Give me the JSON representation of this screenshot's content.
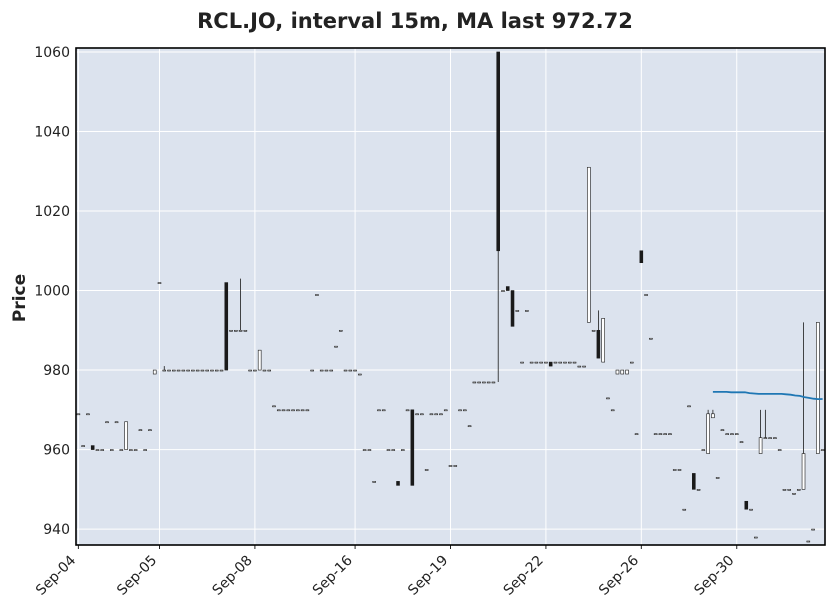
{
  "chart_data": {
    "type": "candlestick",
    "title": "RCL.JO, interval 15m, MA last 972.72",
    "ylabel": "Price",
    "xlabel": "",
    "ylim": [
      936,
      1061
    ],
    "yticks": [
      940,
      960,
      980,
      1000,
      1020,
      1040,
      1060
    ],
    "xticks": [
      "Sep-04",
      "Sep-05",
      "Sep-08",
      "Sep-16",
      "Sep-19",
      "Sep-22",
      "Sep-26",
      "Sep-30"
    ],
    "grid": true,
    "background": "#dce3ee",
    "up_color": "#ffffff",
    "down_color": "#1a1a1a",
    "ma_color": "#1f77b4",
    "candles": [
      [
        969,
        969,
        969,
        969
      ],
      [
        961,
        961,
        961,
        961
      ],
      [
        969,
        969,
        969,
        969
      ],
      [
        961,
        961,
        960,
        960
      ],
      [
        960,
        960,
        960,
        960
      ],
      [
        960,
        960,
        960,
        960
      ],
      [
        967,
        967,
        967,
        967
      ],
      [
        960,
        960,
        960,
        960
      ],
      [
        967,
        967,
        967,
        967
      ],
      [
        960,
        960,
        960,
        960
      ],
      [
        960,
        967,
        960,
        967
      ],
      [
        960,
        960,
        960,
        960
      ],
      [
        960,
        960,
        960,
        960
      ],
      [
        965,
        965,
        965,
        965
      ],
      [
        960,
        960,
        960,
        960
      ],
      [
        965,
        965,
        965,
        965
      ],
      [
        979,
        980,
        979,
        980
      ],
      [
        1002,
        1002,
        1002,
        1002
      ],
      [
        980,
        981,
        980,
        980
      ],
      [
        980,
        980,
        980,
        980
      ],
      [
        980,
        980,
        980,
        980
      ],
      [
        980,
        980,
        980,
        980
      ],
      [
        980,
        980,
        980,
        980
      ],
      [
        980,
        980,
        980,
        980
      ],
      [
        980,
        980,
        980,
        980
      ],
      [
        980,
        980,
        980,
        980
      ],
      [
        980,
        980,
        980,
        980
      ],
      [
        980,
        980,
        980,
        980
      ],
      [
        980,
        980,
        980,
        980
      ],
      [
        980,
        980,
        980,
        980
      ],
      [
        980,
        980,
        980,
        980
      ],
      [
        1002,
        1002,
        980,
        980
      ],
      [
        990,
        990,
        990,
        990
      ],
      [
        990,
        990,
        990,
        990
      ],
      [
        990,
        1003,
        990,
        990
      ],
      [
        990,
        990,
        990,
        990
      ],
      [
        980,
        980,
        980,
        980
      ],
      [
        980,
        980,
        980,
        980
      ],
      [
        980,
        985,
        980,
        985
      ],
      [
        980,
        980,
        980,
        980
      ],
      [
        980,
        980,
        980,
        980
      ],
      [
        971,
        971,
        971,
        971
      ],
      [
        970,
        970,
        970,
        970
      ],
      [
        970,
        970,
        970,
        970
      ],
      [
        970,
        970,
        970,
        970
      ],
      [
        970,
        970,
        970,
        970
      ],
      [
        970,
        970,
        970,
        970
      ],
      [
        970,
        970,
        970,
        970
      ],
      [
        970,
        970,
        970,
        970
      ],
      [
        980,
        980,
        980,
        980
      ],
      [
        999,
        999,
        999,
        999
      ],
      [
        980,
        980,
        980,
        980
      ],
      [
        980,
        980,
        980,
        980
      ],
      [
        980,
        980,
        980,
        980
      ],
      [
        986,
        986,
        986,
        986
      ],
      [
        990,
        990,
        990,
        990
      ],
      [
        980,
        980,
        980,
        980
      ],
      [
        980,
        980,
        980,
        980
      ],
      [
        980,
        980,
        980,
        980
      ],
      [
        979,
        979,
        979,
        979
      ],
      [
        960,
        960,
        960,
        960
      ],
      [
        960,
        960,
        960,
        960
      ],
      [
        952,
        952,
        952,
        952
      ],
      [
        970,
        970,
        970,
        970
      ],
      [
        970,
        970,
        970,
        970
      ],
      [
        960,
        960,
        960,
        960
      ],
      [
        960,
        960,
        960,
        960
      ],
      [
        952,
        952,
        951,
        951
      ],
      [
        960,
        960,
        960,
        960
      ],
      [
        970,
        970,
        970,
        970
      ],
      [
        970,
        970,
        951,
        951
      ],
      [
        969,
        969,
        969,
        969
      ],
      [
        969,
        969,
        969,
        969
      ],
      [
        955,
        955,
        955,
        955
      ],
      [
        969,
        969,
        969,
        969
      ],
      [
        969,
        969,
        969,
        969
      ],
      [
        969,
        969,
        969,
        969
      ],
      [
        970,
        970,
        970,
        970
      ],
      [
        956,
        956,
        956,
        956
      ],
      [
        956,
        956,
        956,
        956
      ],
      [
        970,
        970,
        970,
        970
      ],
      [
        970,
        970,
        970,
        970
      ],
      [
        966,
        966,
        966,
        966
      ],
      [
        977,
        977,
        977,
        977
      ],
      [
        977,
        977,
        977,
        977
      ],
      [
        977,
        977,
        977,
        977
      ],
      [
        977,
        977,
        977,
        977
      ],
      [
        977,
        977,
        977,
        977
      ],
      [
        1060,
        1060,
        977,
        1010
      ],
      [
        1000,
        1000,
        1000,
        1000
      ],
      [
        1001,
        1001,
        1000,
        1000
      ],
      [
        1000,
        1000,
        991,
        991
      ],
      [
        995,
        995,
        995,
        995
      ],
      [
        982,
        982,
        982,
        982
      ],
      [
        995,
        995,
        995,
        995
      ],
      [
        982,
        982,
        982,
        982
      ],
      [
        982,
        982,
        982,
        982
      ],
      [
        982,
        982,
        982,
        982
      ],
      [
        982,
        982,
        982,
        982
      ],
      [
        982,
        982,
        981,
        981
      ],
      [
        982,
        982,
        982,
        982
      ],
      [
        982,
        982,
        982,
        982
      ],
      [
        982,
        982,
        982,
        982
      ],
      [
        982,
        982,
        982,
        982
      ],
      [
        982,
        982,
        982,
        982
      ],
      [
        981,
        981,
        981,
        981
      ],
      [
        981,
        981,
        981,
        981
      ],
      [
        992,
        1031,
        992,
        1031
      ],
      [
        990,
        990,
        990,
        990
      ],
      [
        990,
        995,
        983,
        983
      ],
      [
        982,
        993,
        982,
        993
      ],
      [
        973,
        973,
        973,
        973
      ],
      [
        970,
        970,
        970,
        970
      ],
      [
        979,
        980,
        979,
        980
      ],
      [
        979,
        980,
        979,
        980
      ],
      [
        979,
        980,
        979,
        980
      ],
      [
        982,
        982,
        982,
        982
      ],
      [
        964,
        964,
        964,
        964
      ],
      [
        1010,
        1010,
        1007,
        1007
      ],
      [
        999,
        999,
        999,
        999
      ],
      [
        988,
        988,
        988,
        988
      ],
      [
        964,
        964,
        964,
        964
      ],
      [
        964,
        964,
        964,
        964
      ],
      [
        964,
        964,
        964,
        964
      ],
      [
        964,
        964,
        964,
        964
      ],
      [
        955,
        955,
        955,
        955
      ],
      [
        955,
        955,
        955,
        955
      ],
      [
        945,
        945,
        945,
        945
      ],
      [
        971,
        971,
        971,
        971
      ],
      [
        954,
        954,
        950,
        950
      ],
      [
        950,
        950,
        950,
        950
      ],
      [
        960,
        960,
        960,
        960
      ],
      [
        959,
        970,
        959,
        969
      ],
      [
        968,
        970,
        968,
        969
      ],
      [
        953,
        953,
        953,
        953
      ],
      [
        965,
        965,
        965,
        965
      ],
      [
        964,
        964,
        964,
        964
      ],
      [
        964,
        964,
        964,
        964
      ],
      [
        964,
        964,
        964,
        964
      ],
      [
        962,
        962,
        962,
        962
      ],
      [
        947,
        947,
        945,
        945
      ],
      [
        945,
        945,
        945,
        945
      ],
      [
        938,
        938,
        938,
        938
      ],
      [
        959,
        970,
        959,
        963
      ],
      [
        963,
        970,
        963,
        963
      ],
      [
        963,
        963,
        963,
        963
      ],
      [
        963,
        963,
        963,
        963
      ],
      [
        960,
        960,
        960,
        960
      ],
      [
        950,
        950,
        950,
        950
      ],
      [
        950,
        950,
        950,
        950
      ],
      [
        949,
        949,
        949,
        949
      ],
      [
        950,
        950,
        950,
        950
      ],
      [
        950,
        992,
        950,
        959
      ],
      [
        937,
        937,
        937,
        937
      ],
      [
        940,
        940,
        940,
        940
      ],
      [
        959,
        992,
        959,
        992
      ],
      [
        960,
        960,
        960,
        960
      ]
    ],
    "x_tick_candle_index": [
      0,
      17,
      37,
      58,
      78,
      98,
      118,
      138
    ],
    "ma_series_start_index": 133,
    "ma": [
      974.5,
      974.5,
      974.5,
      974.5,
      974.4,
      974.4,
      974.4,
      974.4,
      974.2,
      974.1,
      974.0,
      974.0,
      974.0,
      974.0,
      974.0,
      974.0,
      973.9,
      973.8,
      973.6,
      973.5,
      973.2,
      973.0,
      972.8,
      972.7,
      972.72
    ]
  }
}
